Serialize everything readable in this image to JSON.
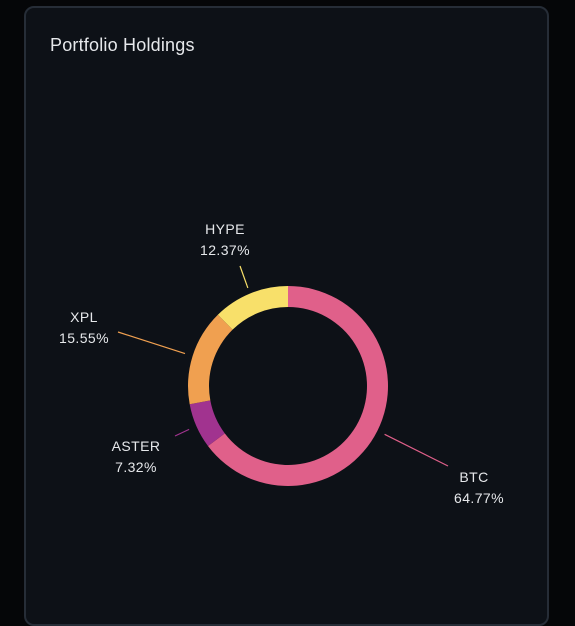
{
  "card": {
    "title": "Portfolio Holdings"
  },
  "chart_data": {
    "type": "pie",
    "variant": "donut",
    "title": "Portfolio Holdings",
    "start_angle_deg": 0,
    "direction": "clockwise",
    "legend": "none",
    "slices": [
      {
        "label": "BTC",
        "value": 64.77,
        "display": "64.77%",
        "color": "#e0608a"
      },
      {
        "label": "ASTER",
        "value": 7.32,
        "display": "7.32%",
        "color": "#a1338f"
      },
      {
        "label": "XPL",
        "value": 15.55,
        "display": "15.55%",
        "color": "#f0a050"
      },
      {
        "label": "HYPE",
        "value": 12.37,
        "display": "12.37%",
        "color": "#f8e06a"
      }
    ]
  }
}
